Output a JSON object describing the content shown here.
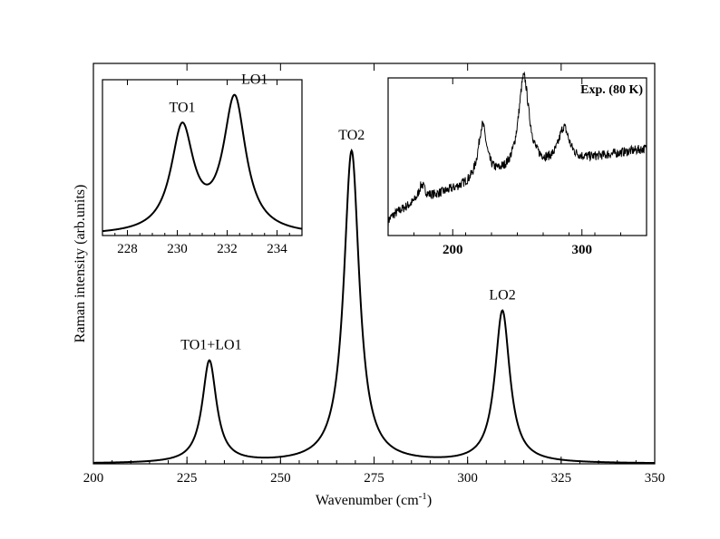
{
  "chart_data": [
    {
      "type": "line",
      "role": "main",
      "title": "",
      "xlabel_main": "Wavenumber (cm",
      "xlabel_sup": "-1",
      "xlabel_close": ")",
      "ylabel": "Raman intensity (arb.units)",
      "xlim": [
        200,
        350
      ],
      "ylim": [
        0,
        1.0
      ],
      "xticks": [
        200,
        225,
        250,
        275,
        300,
        325,
        350
      ],
      "yticks_shown": false,
      "peaks": [
        {
          "label": "TO1+LO1",
          "center": 231.0,
          "height": 0.255,
          "width": 2.3
        },
        {
          "label": "TO2",
          "center": 269.0,
          "height": 0.78,
          "width": 2.5
        },
        {
          "label": "LO2",
          "center": 309.3,
          "height": 0.38,
          "width": 2.4
        }
      ]
    },
    {
      "type": "line",
      "role": "inset-left",
      "title": "",
      "xlim": [
        227,
        235
      ],
      "ylim": [
        0,
        1.0
      ],
      "xticks": [
        228,
        230,
        232,
        234
      ],
      "yticks_shown": false,
      "peaks": [
        {
          "label": "TO1",
          "center": 230.2,
          "height": 0.67,
          "width": 0.55
        },
        {
          "label": "LO1",
          "center": 232.3,
          "height": 0.86,
          "width": 0.55
        }
      ]
    },
    {
      "type": "line",
      "role": "inset-right",
      "title": "Exp. (80 K)",
      "xlim": [
        150,
        350
      ],
      "ylim": [
        0,
        1.0
      ],
      "xticks": [
        200,
        300
      ],
      "yticks_shown": false,
      "baseline_start": 0.08,
      "baseline_end": 0.55,
      "peaks": [
        {
          "center": 176,
          "height": 0.1,
          "width": 3
        },
        {
          "center": 223,
          "height": 0.35,
          "width": 4
        },
        {
          "center": 255,
          "height": 0.6,
          "width": 5
        },
        {
          "center": 286,
          "height": 0.22,
          "width": 5
        }
      ]
    }
  ]
}
